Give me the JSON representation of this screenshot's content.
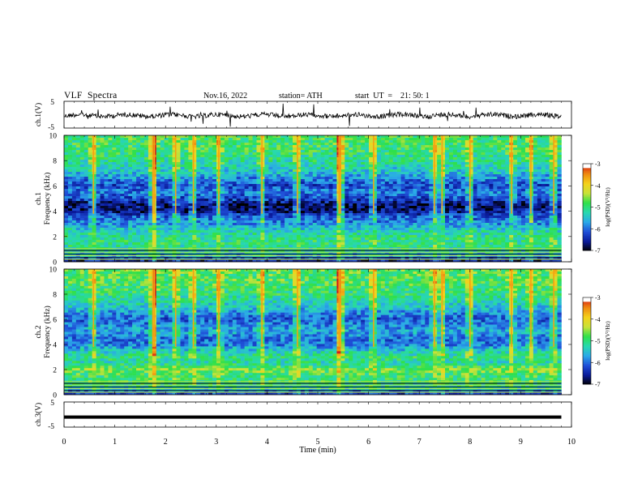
{
  "header": {
    "title": "VLF  Spectra",
    "date": "Nov.16, 2022",
    "station": "station= ATH",
    "start": "start  UT  =    21: 50: 1"
  },
  "colors": {
    "colormap": [
      "#000000",
      "#0a1a9a",
      "#1f4fd8",
      "#2aa9e8",
      "#28d9b0",
      "#2fe04a",
      "#c8e23a",
      "#f4d21a",
      "#f08a10",
      "#d41818",
      "#ffffff"
    ],
    "trace": "#000000",
    "frame": "#000000"
  },
  "chart_data": [
    {
      "type": "line",
      "name": "ch1-trace",
      "ylabel": "ch.1(V)",
      "ylim": [
        -5,
        5
      ],
      "yticks": [
        "5",
        "-5"
      ],
      "xlim": [
        0,
        10
      ],
      "x": [
        0,
        1,
        2,
        3,
        4,
        5,
        6,
        7,
        8,
        9,
        9.8
      ],
      "values": [
        0,
        0,
        0,
        0,
        0,
        0,
        0,
        0,
        0,
        0,
        0
      ]
    },
    {
      "type": "heatmap",
      "name": "ch1-spectrogram",
      "ylabel": "ch.1\nFrequency  (kHz)",
      "ylabel_lines": [
        "ch.1",
        "Frequency  (kHz)"
      ],
      "ylim": [
        0,
        10
      ],
      "yticks": [
        "0",
        "2",
        "4",
        "6",
        "8",
        "10"
      ],
      "xlim": [
        0,
        10
      ],
      "data_xmax": 9.8,
      "colorbar": {
        "label": "log(PSD)(V²/Hz)",
        "range": [
          -7,
          -3
        ],
        "ticks": [
          "-3",
          "-4",
          "-5",
          "-6",
          "-7"
        ]
      },
      "freq_khz": [
        0,
        0.5,
        1,
        1.5,
        2,
        2.5,
        3,
        3.5,
        4,
        4.5,
        5,
        5.5,
        6,
        6.5,
        7,
        7.5,
        8,
        8.5,
        9,
        9.5,
        10
      ],
      "log_psd_profile": [
        -6.8,
        -5.5,
        -5.2,
        -5.0,
        -5.1,
        -5.3,
        -5.8,
        -6.0,
        -6.6,
        -6.7,
        -6.2,
        -5.9,
        -6.2,
        -5.9,
        -5.5,
        -5.3,
        -5.1,
        -5.0,
        -4.9,
        -4.9,
        -4.8
      ],
      "spikes_min": [
        0.58,
        1.75,
        1.78,
        2.2,
        2.55,
        3.05,
        3.9,
        4.6,
        5.42,
        5.45,
        6.1,
        7.3,
        7.45,
        8.0,
        8.82,
        9.2,
        9.65
      ]
    },
    {
      "type": "heatmap",
      "name": "ch2-spectrogram",
      "ylabel": "ch.2\nFrequency  (kHz)",
      "ylabel_lines": [
        "ch.2",
        "Frequency  (kHz)"
      ],
      "ylim": [
        0,
        10
      ],
      "yticks": [
        "0",
        "2",
        "4",
        "6",
        "8",
        "10"
      ],
      "xlim": [
        0,
        10
      ],
      "data_xmax": 9.8,
      "colorbar": {
        "label": "log(PSD)(V²/Hz)",
        "range": [
          -7,
          -3
        ],
        "ticks": [
          "-3",
          "-4",
          "-5",
          "-6",
          "-7"
        ]
      },
      "freq_khz": [
        0,
        0.5,
        1,
        1.5,
        2,
        2.5,
        3,
        3.5,
        4,
        4.5,
        5,
        5.5,
        6,
        6.5,
        7,
        7.5,
        8,
        8.5,
        9,
        9.5,
        10
      ],
      "log_psd_profile": [
        -6.5,
        -5.3,
        -5.0,
        -4.9,
        -4.6,
        -5.2,
        -5.0,
        -5.4,
        -5.9,
        -6.0,
        -5.6,
        -5.8,
        -6.1,
        -5.8,
        -5.4,
        -5.2,
        -5.0,
        -4.9,
        -4.8,
        -4.8,
        -4.7
      ],
      "spikes_min": [
        0.58,
        1.75,
        1.78,
        2.2,
        2.55,
        3.05,
        3.9,
        4.6,
        5.42,
        5.45,
        6.1,
        7.3,
        7.45,
        8.0,
        8.82,
        9.2,
        9.65
      ]
    },
    {
      "type": "line",
      "name": "ch3-trace",
      "ylabel": "ch.3(V)",
      "ylim": [
        -5,
        5
      ],
      "yticks": [
        "5",
        "-5"
      ],
      "xlim": [
        0,
        10
      ],
      "xlabel": "Time  (min)",
      "xticks": [
        "0",
        "1",
        "2",
        "3",
        "4",
        "5",
        "6",
        "7",
        "8",
        "9",
        "10"
      ],
      "x": [
        0,
        9.8
      ],
      "values": [
        -1,
        -1
      ]
    }
  ]
}
